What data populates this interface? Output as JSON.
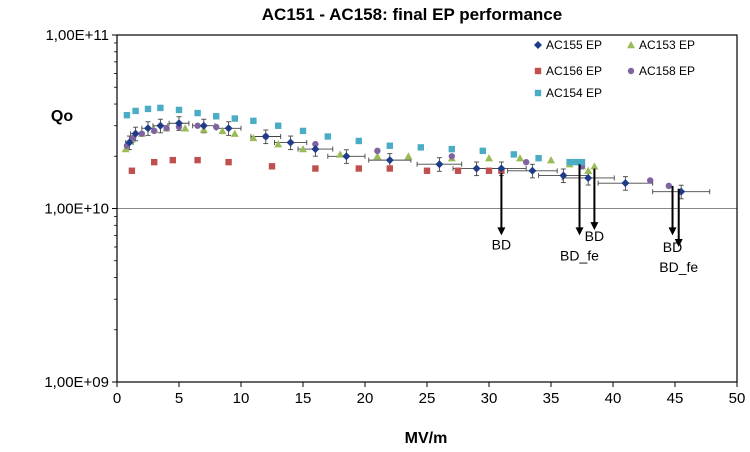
{
  "chart_data": {
    "type": "scatter",
    "title": "AC151 - AC158: final EP performance",
    "xlabel": "MV/m",
    "ylabel": "Qo",
    "xlim": [
      0,
      50
    ],
    "ylim": [
      1000000000.0,
      100000000000.0
    ],
    "yscale": "log",
    "x_ticks": [
      "0",
      "5",
      "10",
      "15",
      "20",
      "25",
      "30",
      "35",
      "40",
      "45",
      "50"
    ],
    "y_ticks": [
      "1,00E+09",
      "1,00E+10",
      "1,00E+11"
    ],
    "grid": "horizontal",
    "legend_position": "top-right",
    "series": [
      {
        "name": "AC155 EP",
        "color": "#1F3C88",
        "marker": "diamond",
        "x": [
          1.0,
          1.5,
          2.5,
          3.5,
          5.0,
          7.0,
          9.0,
          12.0,
          14.0,
          16.0,
          18.5,
          22.0,
          26.0,
          29.0,
          31.0,
          33.5,
          36.0,
          38.0,
          41.0,
          45.5
        ],
        "y": [
          24000000000.0,
          27000000000.0,
          29000000000.0,
          30000000000.0,
          31000000000.0,
          30000000000.0,
          29000000000.0,
          26000000000.0,
          24000000000.0,
          22000000000.0,
          20000000000.0,
          19000000000.0,
          18000000000.0,
          17000000000.0,
          17000000000.0,
          16500000000.0,
          15500000000.0,
          15000000000.0,
          14000000000.0,
          12500000000.0
        ],
        "xerr": [
          0.3,
          0.4,
          0.5,
          0.6,
          0.8,
          0.9,
          1.0,
          1.2,
          1.3,
          1.4,
          1.5,
          1.7,
          1.8,
          1.9,
          2.0,
          2.0,
          2.0,
          2.1,
          2.2,
          2.3
        ],
        "yerr_rel": [
          0.09,
          0.09,
          0.09,
          0.09,
          0.09,
          0.09,
          0.09,
          0.09,
          0.09,
          0.09,
          0.09,
          0.09,
          0.09,
          0.09,
          0.09,
          0.09,
          0.09,
          0.09,
          0.09,
          0.09
        ]
      },
      {
        "name": "AC153 EP",
        "color": "#9BBB59",
        "marker": "triangle",
        "x": [
          0.7,
          1.2,
          2.0,
          3.0,
          4.0,
          5.5,
          7.0,
          8.5,
          9.5,
          11.0,
          13.0,
          15.0,
          18.0,
          21.0,
          23.5,
          27.0,
          30.0,
          32.5,
          35.0,
          36.5,
          37.5,
          38.0,
          38.5
        ],
        "y": [
          22000000000.0,
          25000000000.0,
          27000000000.0,
          28500000000.0,
          29000000000.0,
          29000000000.0,
          28500000000.0,
          28000000000.0,
          27000000000.0,
          25500000000.0,
          23500000000.0,
          22000000000.0,
          20500000000.0,
          20000000000.0,
          20000000000.0,
          19500000000.0,
          19500000000.0,
          19500000000.0,
          19000000000.0,
          18000000000.0,
          17500000000.0,
          16500000000.0,
          17500000000.0
        ]
      },
      {
        "name": "AC156 EP",
        "color": "#C0504D",
        "marker": "square",
        "x": [
          1.2,
          3.0,
          4.5,
          6.5,
          9.0,
          12.5,
          16.0,
          19.5,
          22.0,
          25.0,
          27.5,
          30.0,
          31.0
        ],
        "y": [
          16500000000.0,
          18500000000.0,
          19000000000.0,
          19000000000.0,
          18500000000.0,
          17500000000.0,
          17000000000.0,
          17000000000.0,
          17000000000.0,
          16500000000.0,
          16500000000.0,
          16500000000.0,
          16500000000.0
        ]
      },
      {
        "name": "AC158 EP",
        "color": "#8064A2",
        "marker": "circle",
        "x": [
          0.8,
          1.3,
          2.0,
          3.0,
          4.0,
          5.0,
          6.5,
          8.0,
          12.0,
          16.0,
          21.0,
          27.0,
          33.0,
          37.5,
          43.0,
          44.5
        ],
        "y": [
          23000000000.0,
          25500000000.0,
          27000000000.0,
          28000000000.0,
          29000000000.0,
          29500000000.0,
          30000000000.0,
          29500000000.0,
          26000000000.0,
          23500000000.0,
          21500000000.0,
          20000000000.0,
          18500000000.0,
          17500000000.0,
          14500000000.0,
          13500000000.0
        ]
      },
      {
        "name": "AC154 EP",
        "color": "#4BACC6",
        "marker": "square",
        "x": [
          0.8,
          1.5,
          2.5,
          3.5,
          5.0,
          6.5,
          8.0,
          9.5,
          11.0,
          13.0,
          15.0,
          17.0,
          19.5,
          22.0,
          24.5,
          27.0,
          29.5,
          32.0,
          34.0,
          36.5,
          37.0,
          37.5
        ],
        "y": [
          34500000000.0,
          36500000000.0,
          37500000000.0,
          38000000000.0,
          37000000000.0,
          35500000000.0,
          34000000000.0,
          33000000000.0,
          32000000000.0,
          30000000000.0,
          28000000000.0,
          26000000000.0,
          24500000000.0,
          23000000000.0,
          22500000000.0,
          22000000000.0,
          21500000000.0,
          20500000000.0,
          19500000000.0,
          18500000000.0,
          18500000000.0,
          18500000000.0
        ]
      }
    ],
    "annotations": [
      {
        "text": "BD",
        "x": 31.0,
        "arrow_from": 16000000000.0,
        "arrow_to": 7000000000.0,
        "label_y": 5800000000.0
      },
      {
        "text": "BD_fe",
        "x": 37.3,
        "arrow_from": 18000000000.0,
        "arrow_to": 7000000000.0,
        "label_y": 5000000000.0
      },
      {
        "text": "BD",
        "x": 38.5,
        "arrow_from": 17000000000.0,
        "arrow_to": 7500000000.0,
        "label_y": 6500000000.0
      },
      {
        "text": "BD",
        "x": 44.8,
        "arrow_from": 13500000000.0,
        "arrow_to": 7000000000.0,
        "label_y": 5600000000.0
      },
      {
        "text": "BD_fe",
        "x": 45.3,
        "arrow_from": 13000000000.0,
        "arrow_to": 6000000000.0,
        "label_y": 4300000000.0
      }
    ]
  }
}
